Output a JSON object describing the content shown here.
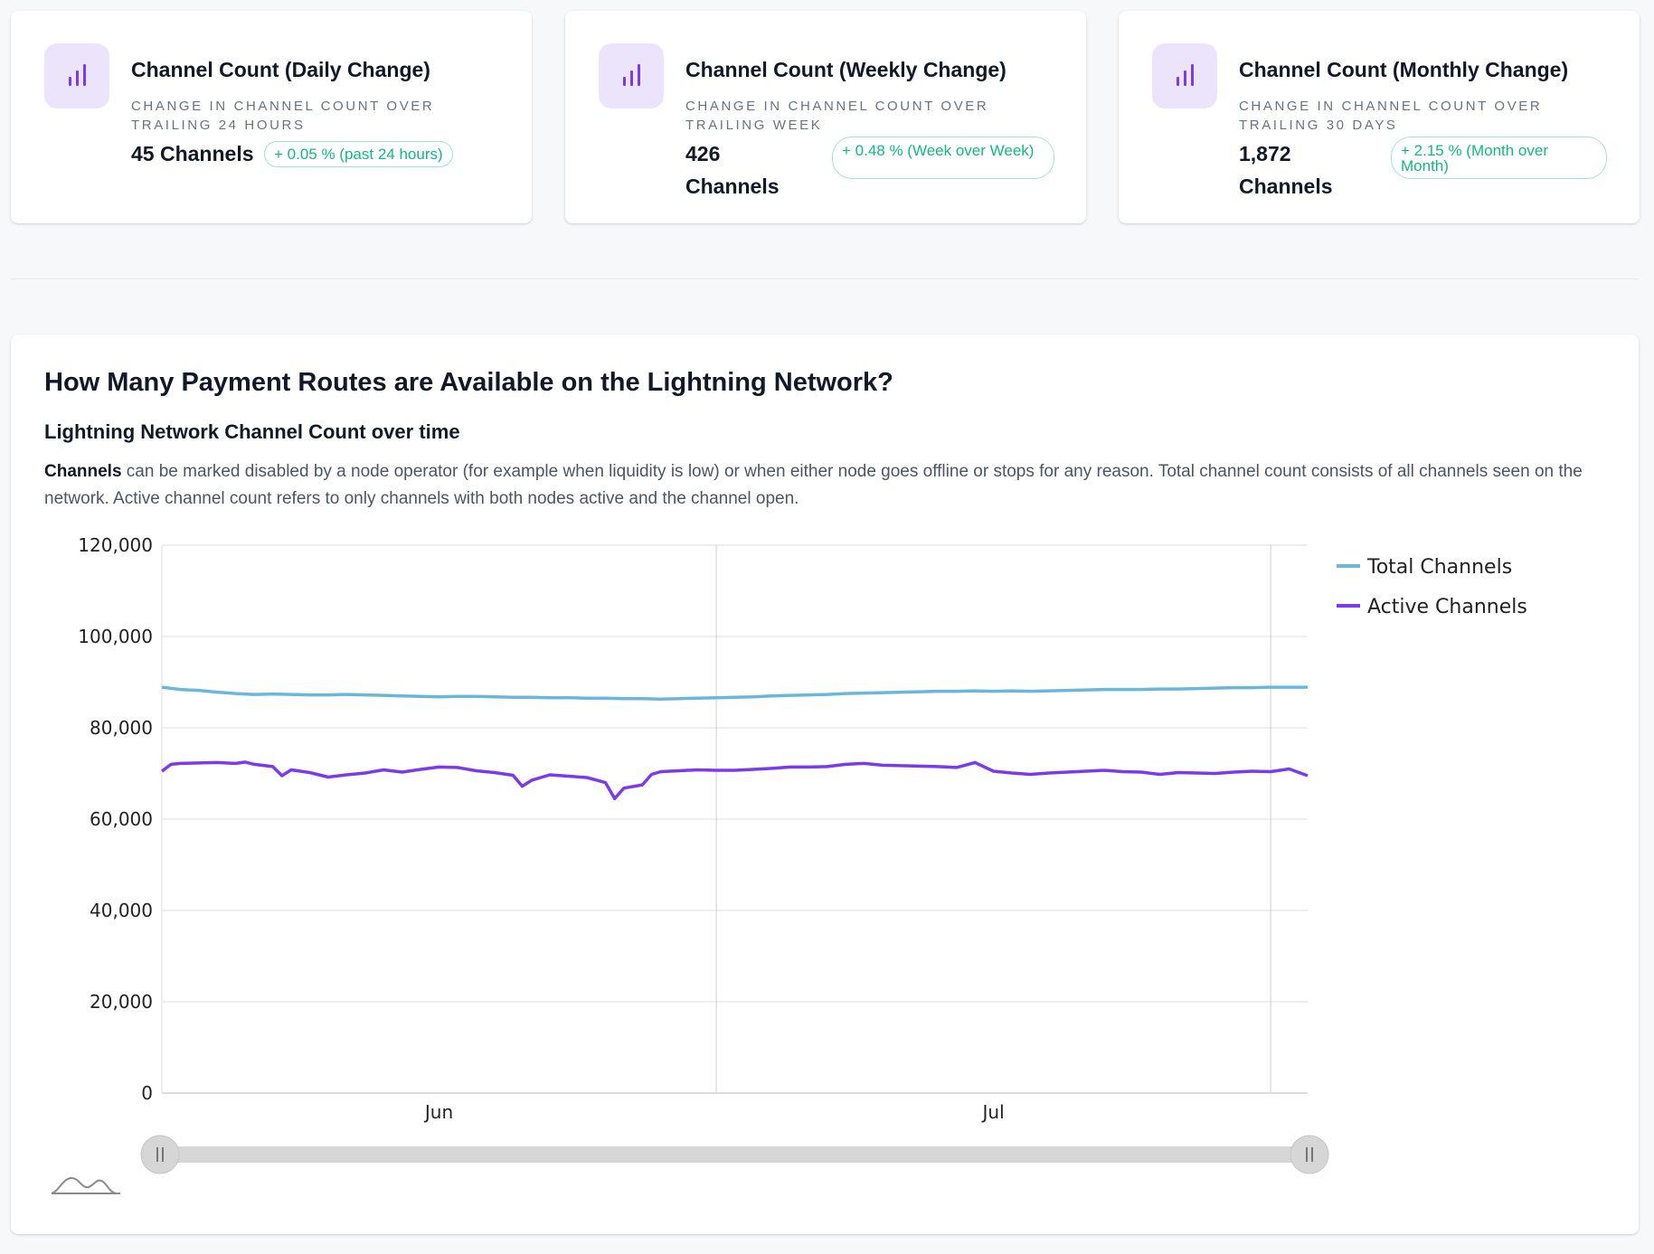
{
  "cards": [
    {
      "title": "Channel Count (Daily Change)",
      "desc": "Change in channel count over trailing 24 hours",
      "value": "45 Channels",
      "change": "+ 0.05 % (past 24 hours)"
    },
    {
      "title": "Channel Count (Weekly Change)",
      "desc": "Change in channel count over trailing week",
      "value_num": "426",
      "value_unit": "Channels",
      "change": "+ 0.48 % (Week over Week)"
    },
    {
      "title": "Channel Count (Monthly Change)",
      "desc": "Change in channel count over trailing 30 days",
      "value_num": "1,872",
      "value_unit": "Channels",
      "change": "+ 2.15 % (Month over Month)"
    }
  ],
  "panel": {
    "heading": "How Many Payment Routes are Available on the Lightning Network?",
    "subheading": "Lightning Network Channel Count over time",
    "para_bold": "Channels",
    "para_rest": " can be marked disabled by a node operator (for example when liquidity is low) or when either node goes offline or stops for any reason. Total channel count consists of all channels seen on the network. Active channel count refers to only channels with both nodes active and the channel open."
  },
  "colors": {
    "total": "#6bb7dc",
    "active": "#7c3aed",
    "badge": "#10b981",
    "icon_bg": "#ebe4fb"
  },
  "chart_data": {
    "type": "line",
    "x_ticks": [
      "Jun",
      "Jul"
    ],
    "y_ticks": [
      "120,000",
      "100,000",
      "80,000",
      "60,000",
      "40,000",
      "20,000",
      "0"
    ],
    "ylim": [
      0,
      120000
    ],
    "x_range_days": [
      0,
      62
    ],
    "x_tick_days": [
      15,
      45
    ],
    "vgrid_days": [
      30,
      60
    ],
    "legend": [
      "Total Channels",
      "Active Channels"
    ],
    "legend_position": "right",
    "series": [
      {
        "name": "Total Channels",
        "x": [
          0,
          1,
          2,
          3,
          4,
          5,
          6,
          7,
          8,
          9,
          10,
          11,
          12,
          13,
          14,
          15,
          16,
          17,
          18,
          19,
          20,
          21,
          22,
          23,
          24,
          25,
          26,
          27,
          28,
          29,
          30,
          31,
          32,
          33,
          34,
          35,
          36,
          37,
          38,
          39,
          40,
          41,
          42,
          43,
          44,
          45,
          46,
          47,
          48,
          49,
          50,
          51,
          52,
          53,
          54,
          55,
          56,
          57,
          58,
          59,
          60,
          61,
          62
        ],
        "values": [
          88900,
          88400,
          88200,
          87800,
          87500,
          87300,
          87400,
          87300,
          87200,
          87200,
          87300,
          87200,
          87100,
          87000,
          86900,
          86800,
          86900,
          86900,
          86800,
          86700,
          86700,
          86600,
          86600,
          86500,
          86500,
          86400,
          86400,
          86300,
          86400,
          86500,
          86600,
          86700,
          86800,
          87000,
          87100,
          87200,
          87300,
          87500,
          87600,
          87700,
          87800,
          87900,
          88000,
          88000,
          88100,
          88000,
          88100,
          88000,
          88100,
          88200,
          88300,
          88400,
          88400,
          88400,
          88500,
          88500,
          88600,
          88700,
          88800,
          88800,
          88900,
          88900,
          88900
        ]
      },
      {
        "name": "Active Channels",
        "x": [
          0,
          0.5,
          1,
          2,
          3,
          4,
          4.5,
          5,
          6,
          6.5,
          7,
          8,
          9,
          10,
          11,
          12,
          13,
          14,
          15,
          16,
          17,
          18,
          19,
          19.5,
          20,
          21,
          22,
          23,
          24,
          24.5,
          25,
          26,
          26.5,
          27,
          28,
          29,
          30,
          31,
          32,
          33,
          34,
          35,
          36,
          37,
          38,
          39,
          40,
          41,
          42,
          43,
          44,
          45,
          46,
          47,
          48,
          49,
          50,
          51,
          52,
          53,
          54,
          55,
          56,
          57,
          58,
          59,
          60,
          61,
          62
        ],
        "values": [
          70500,
          72000,
          72200,
          72300,
          72400,
          72200,
          72500,
          72000,
          71500,
          69500,
          70800,
          70200,
          69200,
          69700,
          70100,
          70800,
          70300,
          70900,
          71400,
          71300,
          70600,
          70200,
          69600,
          67200,
          68500,
          69700,
          69400,
          69100,
          68000,
          64500,
          66800,
          67500,
          69800,
          70400,
          70600,
          70800,
          70700,
          70700,
          70900,
          71100,
          71400,
          71400,
          71500,
          72000,
          72200,
          71800,
          71700,
          71600,
          71500,
          71300,
          72400,
          70500,
          70100,
          69800,
          70100,
          70300,
          70500,
          70700,
          70400,
          70300,
          69800,
          70200,
          70100,
          70000,
          70300,
          70500,
          70400,
          71000,
          69500
        ]
      }
    ]
  }
}
